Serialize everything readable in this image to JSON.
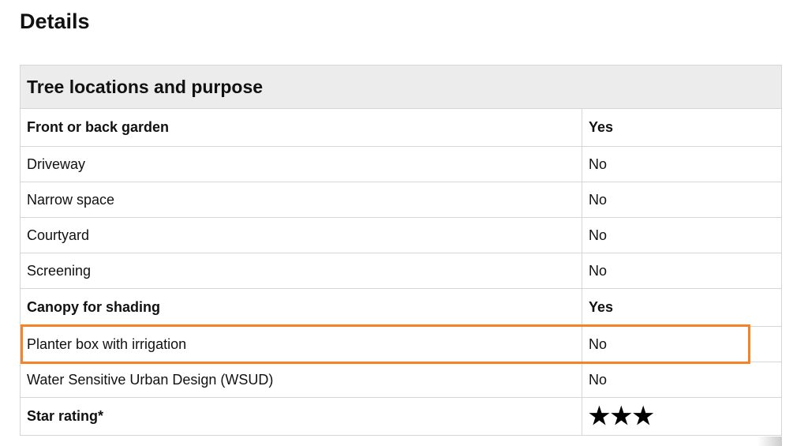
{
  "page_title": "Details",
  "table": {
    "header": "Tree locations and purpose",
    "rows": [
      {
        "label": "Front or back garden",
        "value": "Yes",
        "bold": true
      },
      {
        "label": "Driveway",
        "value": "No"
      },
      {
        "label": "Narrow space",
        "value": "No"
      },
      {
        "label": "Courtyard",
        "value": "No"
      },
      {
        "label": "Screening",
        "value": "No"
      },
      {
        "label": "Canopy for shading",
        "value": "Yes",
        "bold": true
      },
      {
        "label": "Planter box with irrigation",
        "value": "No",
        "highlighted": true
      },
      {
        "label": "Water Sensitive Urban Design (WSUD)",
        "value": "No"
      }
    ],
    "star_rating": {
      "label": "Star rating*",
      "stars": 3,
      "glyph": "★★★"
    }
  },
  "highlight_color": "#f5832a"
}
